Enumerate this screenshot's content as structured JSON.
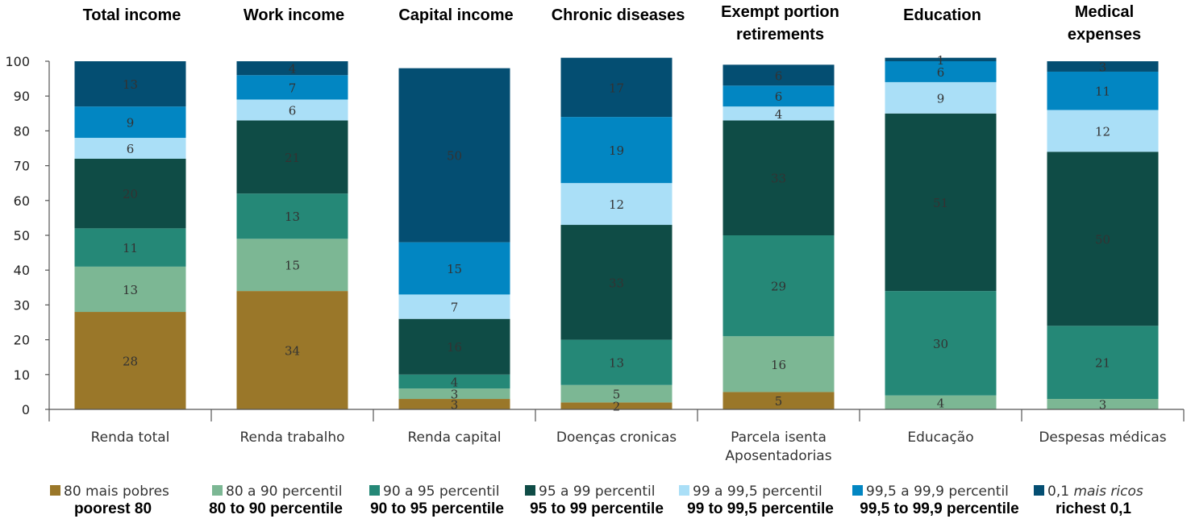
{
  "chart_data": {
    "type": "bar",
    "stacked": true,
    "ylim": [
      0,
      100
    ],
    "yticks": [
      0,
      10,
      20,
      30,
      40,
      50,
      60,
      70,
      80,
      90,
      100
    ],
    "categories": [
      "Renda total",
      "Renda trabalho",
      "Renda capital",
      "Doenças cronicas",
      "Parcela isenta Aposentadorias",
      "Educação",
      "Despesas médicas"
    ],
    "category_label_lines": [
      [
        "Renda total"
      ],
      [
        "Renda trabalho"
      ],
      [
        "Renda capital"
      ],
      [
        "Doenças cronicas"
      ],
      [
        "Parcela isenta",
        "Aposentadorias"
      ],
      [
        "Educação"
      ],
      [
        "Despesas médicas"
      ]
    ],
    "panel_titles": [
      [
        "Total income"
      ],
      [
        "Work income"
      ],
      [
        "Capital income"
      ],
      [
        "Chronic diseases"
      ],
      [
        "Exempt portion",
        "retirements"
      ],
      [
        "Education"
      ],
      [
        "Medical",
        "expenses"
      ]
    ],
    "series": [
      {
        "name": "80 mais pobres",
        "name_en": "poorest 80",
        "color": "#9a7729",
        "values": [
          28,
          34,
          3,
          2,
          5,
          0,
          0
        ]
      },
      {
        "name": "80 a 90 percentil",
        "name_en": "80 to 90 percentile",
        "color": "#7cb794",
        "values": [
          13,
          15,
          3,
          5,
          16,
          4,
          3
        ]
      },
      {
        "name": "90 a 95 percentil",
        "name_en": "90 to 95 percentile",
        "color": "#258877",
        "values": [
          11,
          13,
          4,
          13,
          29,
          30,
          21
        ]
      },
      {
        "name": "95 a 99 percentil",
        "name_en": "95 to 99 percentile",
        "color": "#0f4c46",
        "values": [
          20,
          21,
          16,
          33,
          33,
          51,
          50
        ]
      },
      {
        "name": "99 a 99,5 percentil",
        "name_en": "99 to 99,5 percentile",
        "color": "#aadff7",
        "values": [
          6,
          6,
          7,
          12,
          4,
          9,
          12
        ]
      },
      {
        "name": "99,5 a 99,9 percentil",
        "name_en": "99,5 to 99,9 percentile",
        "color": "#0286c2",
        "values": [
          9,
          7,
          15,
          19,
          6,
          6,
          11
        ]
      },
      {
        "name": "0,1 mais ricos",
        "name_en": "richest 0,1",
        "color": "#044e72",
        "values": [
          13,
          4,
          50,
          17,
          6,
          1,
          3
        ]
      }
    ],
    "legend_position": "bottom",
    "grid": false
  }
}
